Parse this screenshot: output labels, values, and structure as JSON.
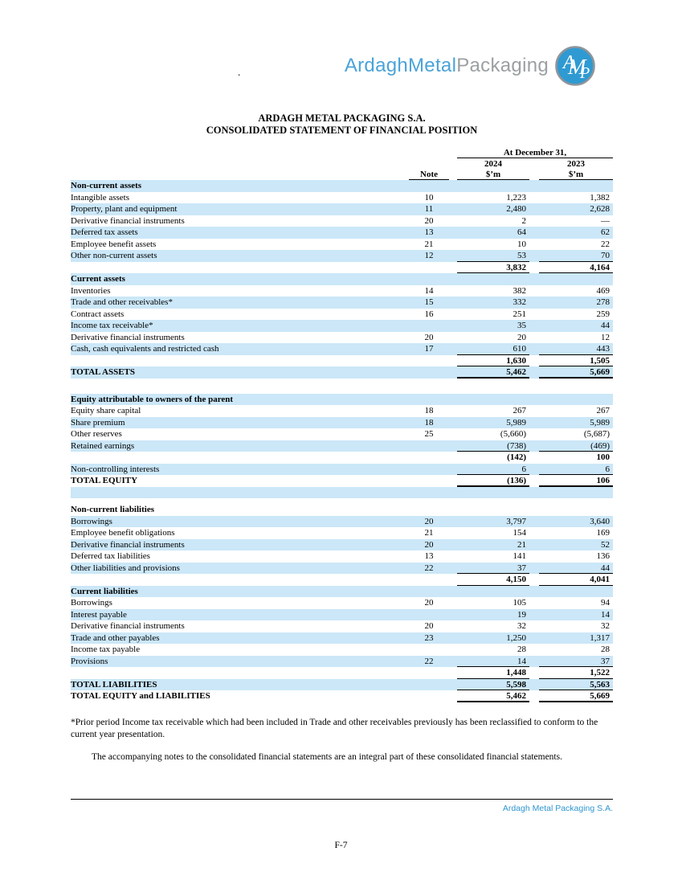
{
  "logo": {
    "text_blue": "ArdaghMetal",
    "text_gray": "Packaging",
    "monogram": "AMP"
  },
  "stray_mark": ".",
  "title": {
    "company": "ARDAGH METAL PACKAGING S.A.",
    "statement": "CONSOLIDATED STATEMENT OF FINANCIAL POSITION"
  },
  "columns": {
    "date_header": "At December 31,",
    "note": "Note",
    "year_2024": "2024",
    "year_2023": "2023",
    "unit_2024": "$’m",
    "unit_2023": "$’m"
  },
  "rows": [
    {
      "type": "section",
      "label": "Non-current assets",
      "note": "",
      "v2024": "",
      "v2023": "",
      "shade": true,
      "rule": false,
      "thick": false
    },
    {
      "type": "item",
      "label": "Intangible assets",
      "note": "10",
      "v2024": "1,223",
      "v2023": "1,382",
      "shade": false,
      "rule": false,
      "thick": false
    },
    {
      "type": "item",
      "label": "Property, plant and equipment",
      "note": "11",
      "v2024": "2,480",
      "v2023": "2,628",
      "shade": true,
      "rule": false,
      "thick": false
    },
    {
      "type": "item",
      "label": "Derivative financial instruments",
      "note": "20",
      "v2024": "2",
      "v2023": "—",
      "shade": false,
      "rule": false,
      "thick": false
    },
    {
      "type": "item",
      "label": "Deferred tax assets",
      "note": "13",
      "v2024": "64",
      "v2023": "62",
      "shade": true,
      "rule": false,
      "thick": false
    },
    {
      "type": "item",
      "label": "Employee benefit assets",
      "note": "21",
      "v2024": "10",
      "v2023": "22",
      "shade": false,
      "rule": false,
      "thick": false
    },
    {
      "type": "item",
      "label": "Other non-current assets",
      "note": "12",
      "v2024": "53",
      "v2023": "70",
      "shade": true,
      "rule": true,
      "thick": false
    },
    {
      "type": "subtotal",
      "label": "",
      "note": "",
      "v2024": "3,832",
      "v2023": "4,164",
      "shade": false,
      "rule": true,
      "thick": false
    },
    {
      "type": "section",
      "label": "Current assets",
      "note": "",
      "v2024": "",
      "v2023": "",
      "shade": true,
      "rule": false,
      "thick": false
    },
    {
      "type": "item",
      "label": "Inventories",
      "note": "14",
      "v2024": "382",
      "v2023": "469",
      "shade": false,
      "rule": false,
      "thick": false
    },
    {
      "type": "item",
      "label": "Trade and other receivables*",
      "note": "15",
      "v2024": "332",
      "v2023": "278",
      "shade": true,
      "rule": false,
      "thick": false
    },
    {
      "type": "item",
      "label": "Contract assets",
      "note": "16",
      "v2024": "251",
      "v2023": "259",
      "shade": false,
      "rule": false,
      "thick": false
    },
    {
      "type": "item",
      "label": "Income tax receivable*",
      "note": "",
      "v2024": "35",
      "v2023": "44",
      "shade": true,
      "rule": false,
      "thick": false
    },
    {
      "type": "item",
      "label": "Derivative financial instruments",
      "note": "20",
      "v2024": "20",
      "v2023": "12",
      "shade": false,
      "rule": false,
      "thick": false
    },
    {
      "type": "item",
      "label": "Cash, cash equivalents and restricted cash",
      "note": "17",
      "v2024": "610",
      "v2023": "443",
      "shade": true,
      "rule": true,
      "thick": false
    },
    {
      "type": "subtotal",
      "label": "",
      "note": "",
      "v2024": "1,630",
      "v2023": "1,505",
      "shade": false,
      "rule": true,
      "thick": false
    },
    {
      "type": "total",
      "label": "TOTAL ASSETS",
      "note": "",
      "v2024": "5,462",
      "v2023": "5,669",
      "shade": true,
      "rule": true,
      "thick": true
    },
    {
      "type": "spacer",
      "height": 19
    },
    {
      "type": "section",
      "label": "Equity attributable to owners of the parent",
      "note": "",
      "v2024": "",
      "v2023": "",
      "shade": true,
      "rule": false,
      "thick": false
    },
    {
      "type": "item",
      "label": "Equity share capital",
      "note": "18",
      "v2024": "267",
      "v2023": "267",
      "shade": false,
      "rule": false,
      "thick": false
    },
    {
      "type": "item",
      "label": "Share premium",
      "note": "18",
      "v2024": "5,989",
      "v2023": "5,989",
      "shade": true,
      "rule": false,
      "thick": false
    },
    {
      "type": "item",
      "label": "Other reserves",
      "note": "25",
      "v2024": "(5,660)",
      "v2023": "(5,687)",
      "shade": false,
      "rule": false,
      "thick": false
    },
    {
      "type": "item",
      "label": "Retained earnings",
      "note": "",
      "v2024": "(738)",
      "v2023": "(469)",
      "shade": true,
      "rule": true,
      "thick": false
    },
    {
      "type": "subtotal",
      "label": "",
      "note": "",
      "v2024": "(142)",
      "v2023": "100",
      "shade": false,
      "rule": false,
      "thick": false
    },
    {
      "type": "item",
      "label": "Non-controlling interests",
      "note": "",
      "v2024": "6",
      "v2023": "6",
      "shade": true,
      "rule": true,
      "thick": false
    },
    {
      "type": "total",
      "label": "TOTAL EQUITY",
      "note": "",
      "v2024": "(136)",
      "v2023": "106",
      "shade": false,
      "rule": true,
      "thick": true
    },
    {
      "type": "blank",
      "label": "",
      "note": "",
      "v2024": "",
      "v2023": "",
      "shade": true,
      "rule": false,
      "thick": false
    },
    {
      "type": "spacer",
      "height": 7
    },
    {
      "type": "section",
      "label": "Non-current liabilities",
      "note": "",
      "v2024": "",
      "v2023": "",
      "shade": false,
      "rule": false,
      "thick": false
    },
    {
      "type": "item",
      "label": "Borrowings",
      "note": "20",
      "v2024": "3,797",
      "v2023": "3,640",
      "shade": true,
      "rule": false,
      "thick": false
    },
    {
      "type": "item",
      "label": "Employee benefit obligations",
      "note": "21",
      "v2024": "154",
      "v2023": "169",
      "shade": false,
      "rule": false,
      "thick": false
    },
    {
      "type": "item",
      "label": "Derivative financial instruments",
      "note": "20",
      "v2024": "21",
      "v2023": "52",
      "shade": true,
      "rule": false,
      "thick": false
    },
    {
      "type": "item",
      "label": "Deferred tax liabilities",
      "note": "13",
      "v2024": "141",
      "v2023": "136",
      "shade": false,
      "rule": false,
      "thick": false
    },
    {
      "type": "item",
      "label": "Other liabilities and provisions",
      "note": "22",
      "v2024": "37",
      "v2023": "44",
      "shade": true,
      "rule": true,
      "thick": false
    },
    {
      "type": "subtotal",
      "label": "",
      "note": "",
      "v2024": "4,150",
      "v2023": "4,041",
      "shade": false,
      "rule": true,
      "thick": false
    },
    {
      "type": "section",
      "label": "Current liabilities",
      "note": "",
      "v2024": "",
      "v2023": "",
      "shade": true,
      "rule": false,
      "thick": false
    },
    {
      "type": "item",
      "label": "Borrowings",
      "note": "20",
      "v2024": "105",
      "v2023": "94",
      "shade": false,
      "rule": false,
      "thick": false
    },
    {
      "type": "item",
      "label": "Interest payable",
      "note": "",
      "v2024": "19",
      "v2023": "14",
      "shade": true,
      "rule": false,
      "thick": false
    },
    {
      "type": "item",
      "label": "Derivative financial instruments",
      "note": "20",
      "v2024": "32",
      "v2023": "32",
      "shade": false,
      "rule": false,
      "thick": false
    },
    {
      "type": "item",
      "label": "Trade and other payables",
      "note": "23",
      "v2024": "1,250",
      "v2023": "1,317",
      "shade": true,
      "rule": false,
      "thick": false
    },
    {
      "type": "item",
      "label": "Income tax payable",
      "note": "",
      "v2024": "28",
      "v2023": "28",
      "shade": false,
      "rule": false,
      "thick": false
    },
    {
      "type": "item",
      "label": "Provisions",
      "note": "22",
      "v2024": "14",
      "v2023": "37",
      "shade": true,
      "rule": true,
      "thick": false
    },
    {
      "type": "subtotal",
      "label": "",
      "note": "",
      "v2024": "1,448",
      "v2023": "1,522",
      "shade": false,
      "rule": true,
      "thick": false
    },
    {
      "type": "total",
      "label": "TOTAL LIABILITIES",
      "note": "",
      "v2024": "5,598",
      "v2023": "5,563",
      "shade": true,
      "rule": true,
      "thick": false
    },
    {
      "type": "total",
      "label": "TOTAL EQUITY and LIABILITIES",
      "note": "",
      "v2024": "5,462",
      "v2023": "5,669",
      "shade": false,
      "rule": true,
      "thick": true
    }
  ],
  "footnote_reclass": "*Prior period Income tax receivable which had been included in Trade and other receivables previously has been reclassified to conform to the current year presentation.",
  "footnote_notes": "The accompanying notes to the consolidated financial statements are an integral part of these consolidated financial statements.",
  "footer": {
    "brand": "Ardagh Metal Packaging S.A.",
    "page": "F-7"
  },
  "colors": {
    "row_shade": "#cbe7f8",
    "logo_blue": "#4aa3d8",
    "logo_gray": "#9ba0a3",
    "brand_blue": "#2f96d2",
    "monogram_fill": "#2f9ad2",
    "monogram_ring": "#8e959b"
  }
}
